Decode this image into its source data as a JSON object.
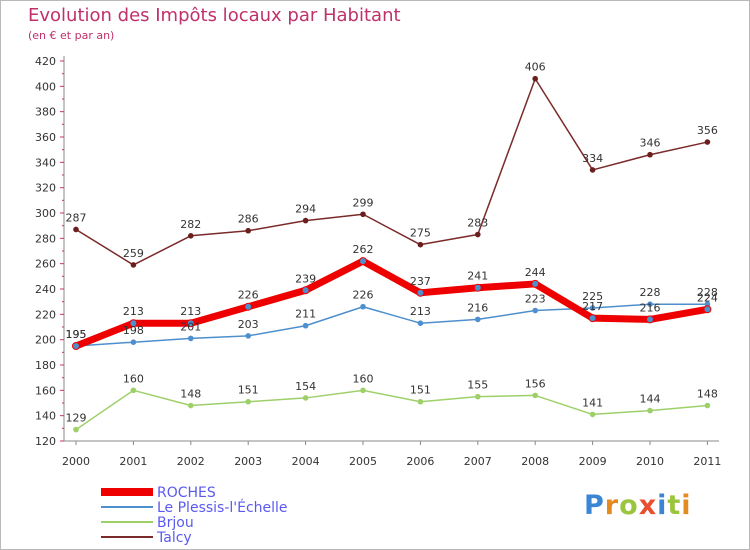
{
  "title": "Evolution des Impôts locaux par Habitant",
  "subtitle": "(en € et par an)",
  "logo": {
    "p": "P",
    "r": "r",
    "o": "o",
    "x": "x",
    "i": "i",
    "t": "t",
    "i2": "i"
  },
  "chart_data": {
    "type": "line",
    "title": "Evolution des Impôts locaux par Habitant",
    "subtitle": "(en € et par an)",
    "x": [
      "2000",
      "2001",
      "2002",
      "2003",
      "2004",
      "2005",
      "2006",
      "2007",
      "2008",
      "2009",
      "2010",
      "2011"
    ],
    "ylim": [
      120,
      420
    ],
    "yticks": [
      120,
      140,
      160,
      180,
      200,
      220,
      240,
      260,
      280,
      300,
      320,
      340,
      360,
      380,
      400,
      420
    ],
    "grid": false,
    "legend_position": "bottom-left",
    "series": [
      {
        "name": "Talcy",
        "color": "#7a2a2a",
        "values": [
          287,
          259,
          282,
          286,
          294,
          299,
          275,
          283,
          406,
          334,
          346,
          356
        ]
      },
      {
        "name": "Brjou",
        "color": "#9ed06a",
        "values": [
          129,
          160,
          148,
          151,
          154,
          160,
          151,
          155,
          156,
          141,
          144,
          148
        ]
      },
      {
        "name": "Le Plessis-l'Échelle",
        "color": "#4e8fce",
        "values": [
          195,
          198,
          201,
          203,
          211,
          226,
          213,
          216,
          223,
          225,
          228,
          228
        ]
      },
      {
        "name": "ROCHES",
        "color": "#ee0000",
        "values": [
          195,
          213,
          213,
          226,
          239,
          262,
          237,
          241,
          244,
          217,
          216,
          224
        ]
      }
    ],
    "legend_order": [
      "ROCHES",
      "Le Plessis-l'Échelle",
      "Brjou",
      "Talcy"
    ]
  }
}
